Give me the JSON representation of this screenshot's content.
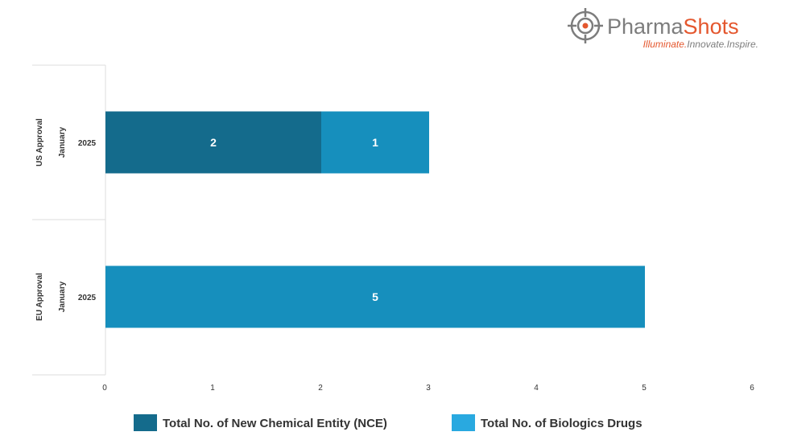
{
  "brand": {
    "name_part1": "Pharma",
    "name_part2": "Shots",
    "tagline_1": "Illuminate.",
    "tagline_2": "Innovate.",
    "tagline_3": "Inspire.",
    "color_gray": "#7d7d7d",
    "color_orange": "#e4572e",
    "logo_icon": "target-crosshair-icon"
  },
  "chart_data": {
    "type": "bar",
    "orientation": "horizontal",
    "stacked": true,
    "groups": [
      {
        "label": "US Approval",
        "category": "January",
        "year": "2025"
      },
      {
        "label": "EU Approval",
        "category": "January",
        "year": "2025"
      }
    ],
    "series": [
      {
        "name": "Total No. of New Chemical Entity (NCE)",
        "color": "#146b8c",
        "values": [
          2,
          0
        ]
      },
      {
        "name": "Total No. of Biologics Drugs",
        "color": "#168fbd",
        "values": [
          1,
          5
        ]
      }
    ],
    "xlim": [
      0,
      6
    ],
    "x_ticks": [
      "0",
      "1",
      "2",
      "3",
      "4",
      "5",
      "6"
    ],
    "grid": false,
    "legend": "bottom",
    "legend_colors": [
      "#146b8c",
      "#29a9e0"
    ]
  }
}
